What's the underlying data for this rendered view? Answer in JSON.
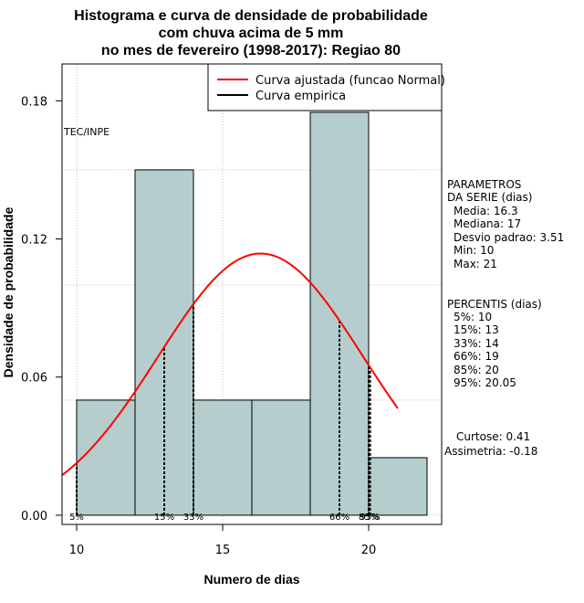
{
  "chart_data": {
    "type": "bar",
    "title": [
      "Histograma e curva de densidade de probabilidade",
      "com chuva acima de 5 mm",
      "no mes de fevereiro (1998-2017): Regiao 80"
    ],
    "xlabel": "Numero de dias",
    "ylabel": "Densidade de probabilidade",
    "xlim": [
      9.5,
      22.5
    ],
    "ylim": [
      -0.004,
      0.196
    ],
    "x_ticks": [
      10,
      15,
      20
    ],
    "y_ticks": [
      0.0,
      0.06,
      0.12,
      0.18
    ],
    "y_tick_labels": [
      "0.00",
      "0.06",
      "0.12",
      "0.18"
    ],
    "grid": true,
    "bar_color": "#b5cdcd",
    "curve_color": "#ff0000",
    "bins": [
      {
        "start": 10,
        "end": 12,
        "density": 0.05
      },
      {
        "start": 12,
        "end": 14,
        "density": 0.15
      },
      {
        "start": 14,
        "end": 16,
        "density": 0.05
      },
      {
        "start": 16,
        "end": 18,
        "density": 0.05
      },
      {
        "start": 18,
        "end": 20,
        "density": 0.175
      },
      {
        "start": 20,
        "end": 22,
        "density": 0.025
      }
    ],
    "normal_curve": {
      "mean": 16.3,
      "sd": 3.51,
      "x_from": 9.5,
      "x_to": 21
    },
    "percentile_markers": [
      {
        "label": "5%",
        "value": 10
      },
      {
        "label": "15%",
        "value": 13
      },
      {
        "label": "33%",
        "value": 14
      },
      {
        "label": "66%",
        "value": 19
      },
      {
        "label": "85%",
        "value": 20
      },
      {
        "label": "95%",
        "value": 20.05
      }
    ],
    "legend": {
      "position": "top-right",
      "entries": [
        {
          "label": "Curva ajustada (funcao Normal)",
          "color": "#ff0000"
        },
        {
          "label": "Curva empirica",
          "color": "#000000"
        }
      ]
    },
    "source_label": "TEC/INPE"
  },
  "side_panel": {
    "parametros": {
      "heading": [
        "PARAMETROS",
        "DA SERIE (dias)"
      ],
      "items": [
        "Media: 16.3",
        "Mediana: 17",
        "Desvio padrao: 3.51",
        "Min: 10",
        "Max: 21"
      ]
    },
    "percentis": {
      "heading": "PERCENTIS (dias)",
      "items": [
        "5%: 10",
        "15%: 13",
        "33%: 14",
        "66%: 19",
        "85%: 20",
        "95%: 20.05"
      ]
    },
    "stats": [
      "Curtose: 0.41",
      "Assimetria: -0.18"
    ]
  }
}
